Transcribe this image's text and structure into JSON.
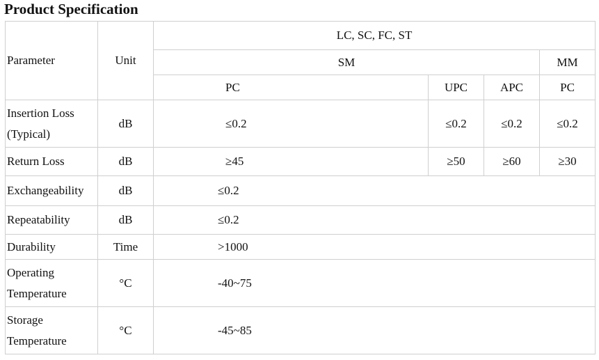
{
  "title": "Product Specification",
  "table": {
    "header": {
      "parameter": "Parameter",
      "unit": "Unit",
      "connectors": "LC, SC, FC, ST",
      "sm": "SM",
      "mm": "MM",
      "sub": [
        "PC",
        "UPC",
        "APC",
        "PC"
      ]
    },
    "rows": [
      [
        "Insertion Loss (Typical)",
        "dB",
        "≤0.2",
        "≤0.2",
        "≤0.2",
        "≤0.2"
      ],
      [
        "Return Loss",
        "dB",
        "≥45",
        "≥50",
        "≥60",
        "≥30"
      ],
      [
        "Exchangeability",
        "dB",
        "≤0.2"
      ],
      [
        "Repeatability",
        "dB",
        "≤0.2"
      ],
      [
        "Durability",
        "Time",
        ">1000"
      ],
      [
        "Operating Temperature",
        "°C",
        "-40~75"
      ],
      [
        "Storage Temperature",
        "°C",
        "-45~85"
      ]
    ]
  }
}
